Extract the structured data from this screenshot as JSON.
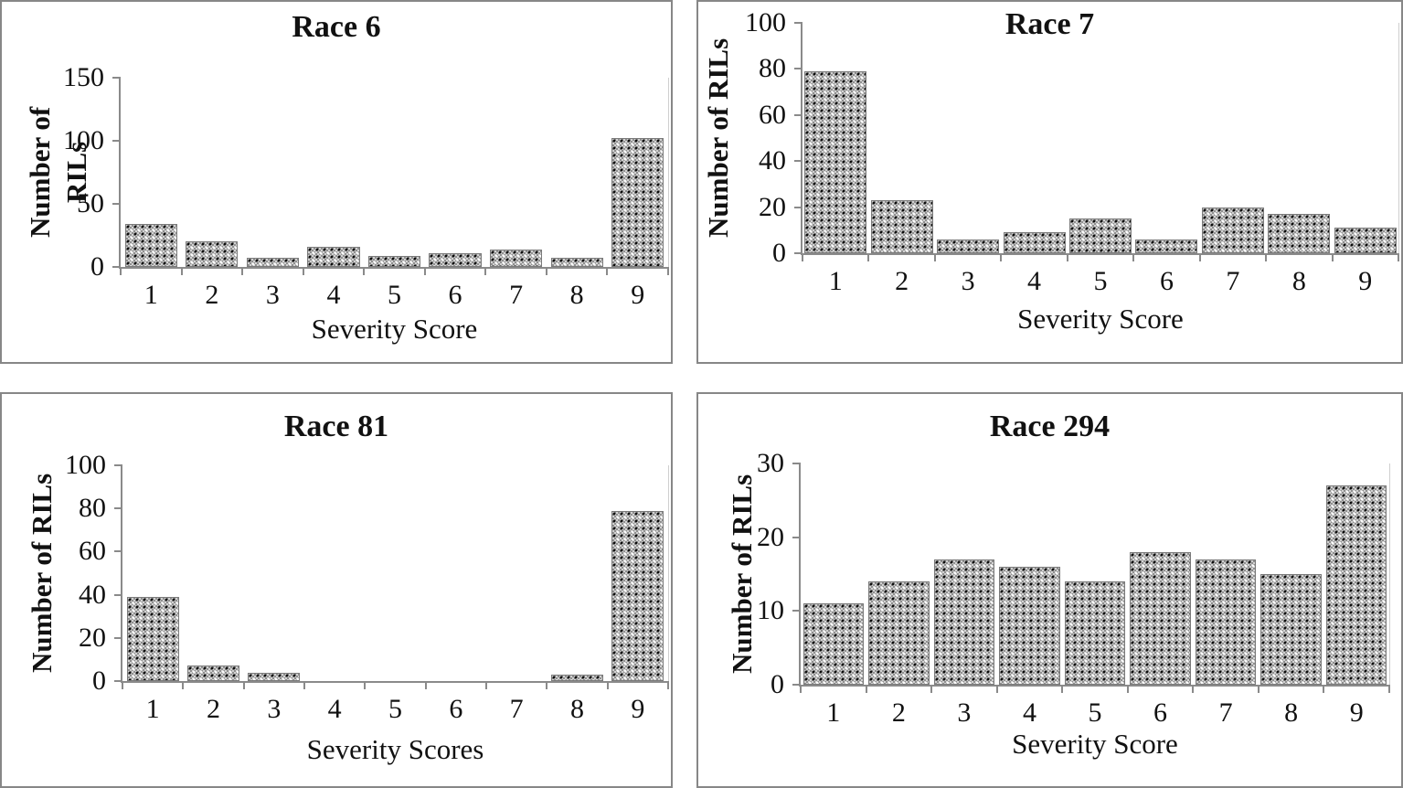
{
  "chart_data": [
    {
      "type": "bar",
      "title": "Race 6",
      "ylabel": "Number of RILs",
      "xlabel": "Severity Score",
      "categories": [
        "1",
        "2",
        "3",
        "4",
        "5",
        "6",
        "7",
        "8",
        "9"
      ],
      "values": [
        34,
        20,
        7,
        16,
        9,
        11,
        14,
        7,
        102
      ],
      "ylim": [
        0,
        150
      ],
      "yticks": [
        0,
        50,
        100,
        150
      ],
      "grid": false,
      "legend_position": "none"
    },
    {
      "type": "bar",
      "title": "Race 7",
      "ylabel": "Number of RILs",
      "xlabel": "Severity Score",
      "categories": [
        "1",
        "2",
        "3",
        "4",
        "5",
        "6",
        "7",
        "8",
        "9"
      ],
      "values": [
        79,
        23,
        6,
        9,
        15,
        6,
        20,
        17,
        11
      ],
      "ylim": [
        0,
        100
      ],
      "yticks": [
        0,
        20,
        40,
        60,
        80,
        100
      ],
      "grid": false,
      "legend_position": "none"
    },
    {
      "type": "bar",
      "title": "Race 81",
      "ylabel": "Number of RILs",
      "xlabel": "Severity Scores",
      "categories": [
        "1",
        "2",
        "3",
        "4",
        "5",
        "6",
        "7",
        "8",
        "9"
      ],
      "values": [
        39,
        7,
        4,
        0,
        0,
        0,
        0,
        3,
        79
      ],
      "ylim": [
        0,
        100
      ],
      "yticks": [
        0,
        20,
        40,
        60,
        80,
        100
      ],
      "grid": false,
      "legend_position": "none"
    },
    {
      "type": "bar",
      "title": "Race 294",
      "ylabel": "Number of RILs",
      "xlabel": "Severity Score",
      "categories": [
        "1",
        "2",
        "3",
        "4",
        "5",
        "6",
        "7",
        "8",
        "9"
      ],
      "values": [
        11,
        14,
        17,
        16,
        14,
        18,
        17,
        15,
        27
      ],
      "ylim": [
        0,
        30
      ],
      "yticks": [
        0,
        10,
        20,
        30
      ],
      "grid": false,
      "legend_position": "none"
    }
  ],
  "colors": {
    "bar_fill": "#a8a8a8",
    "bar_border": "#7a7a7a",
    "axis": "#8a8a8a",
    "text": "#111111",
    "panel_border": "#878787",
    "background": "#ffffff"
  }
}
